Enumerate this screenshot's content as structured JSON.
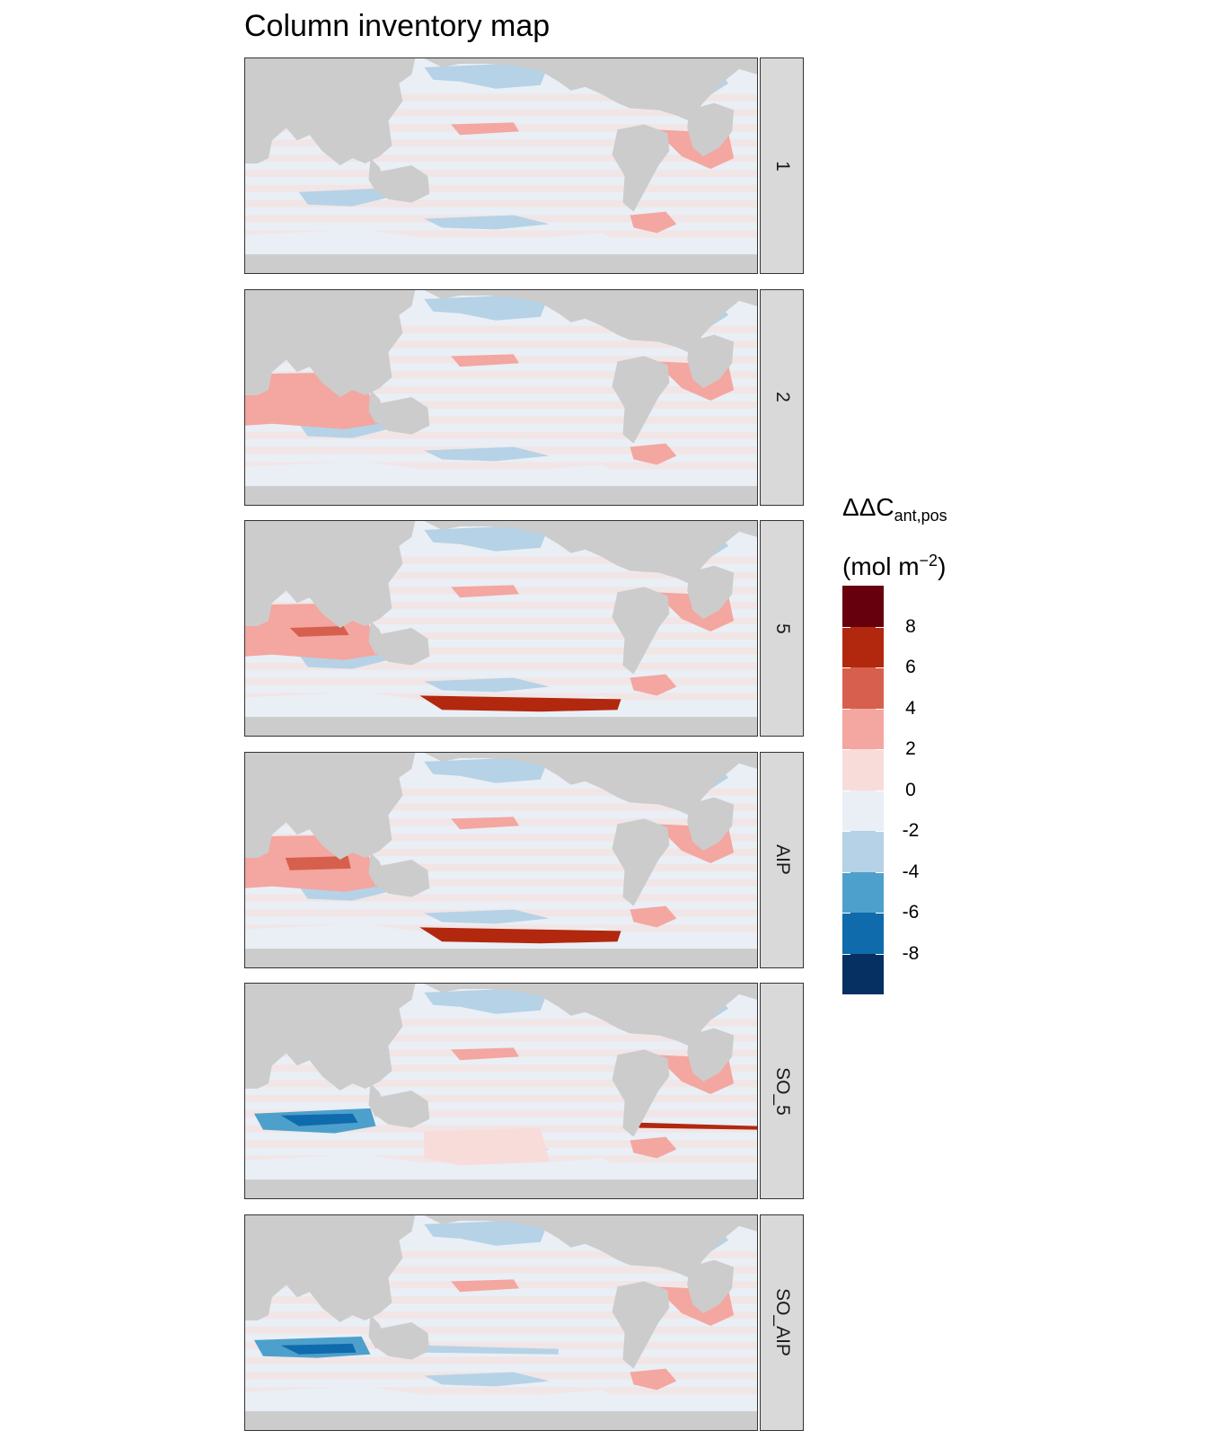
{
  "chart_data": {
    "type": "heatmap",
    "title": "Column inventory map",
    "panels": [
      {
        "label": "1"
      },
      {
        "label": "2"
      },
      {
        "label": "5"
      },
      {
        "label": "AIP"
      },
      {
        "label": "SO_5"
      },
      {
        "label": "SO_AIP"
      }
    ],
    "legend": {
      "title_main": "ΔΔC",
      "title_sub": "ant,pos",
      "unit_open": "(mol m",
      "unit_sup": "−2",
      "unit_close": ")",
      "placement": "right",
      "tick_labels": [
        "8",
        "6",
        "4",
        "2",
        "0",
        "-2",
        "-4",
        "-6",
        "-8"
      ],
      "bins": [
        {
          "range": [
            8,
            10
          ],
          "color": "#67000d"
        },
        {
          "range": [
            6,
            8
          ],
          "color": "#b2280e"
        },
        {
          "range": [
            4,
            6
          ],
          "color": "#d6604d"
        },
        {
          "range": [
            2,
            4
          ],
          "color": "#f4a6a0"
        },
        {
          "range": [
            0,
            2
          ],
          "color": "#f8dcd9"
        },
        {
          "range": [
            -2,
            0
          ],
          "color": "#e9eff5"
        },
        {
          "range": [
            -4,
            -2
          ],
          "color": "#b6d2e6"
        },
        {
          "range": [
            -6,
            -4
          ],
          "color": "#4ea0cc"
        },
        {
          "range": [
            -8,
            -6
          ],
          "color": "#0f6bab"
        },
        {
          "range": [
            -10,
            -8
          ],
          "color": "#053061"
        }
      ]
    },
    "land_color": "#cccccc",
    "colors": {
      "ocean_base": "#f1f4f7"
    }
  }
}
